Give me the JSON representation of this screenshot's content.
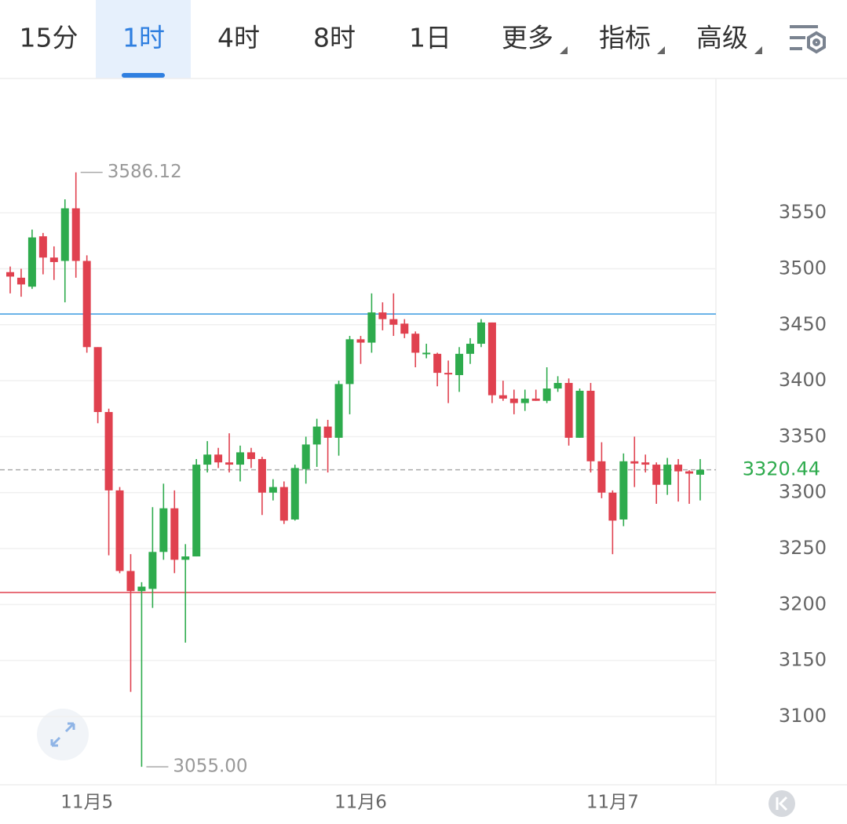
{
  "tabs": {
    "items": [
      "15分",
      "1时",
      "4时",
      "8时",
      "1日",
      "更多",
      "指标",
      "高级"
    ],
    "active": 1
  },
  "chart_data": {
    "type": "candlestick",
    "x": [
      null,
      null,
      null,
      null,
      null,
      null,
      null,
      "11月5",
      null,
      null,
      null,
      null,
      null,
      null,
      null,
      null,
      null,
      null,
      null,
      null,
      null,
      null,
      null,
      null,
      null,
      null,
      null,
      null,
      null,
      null,
      null,
      null,
      "11月6",
      null,
      null,
      null,
      null,
      null,
      null,
      null,
      null,
      null,
      null,
      null,
      null,
      null,
      null,
      null,
      null,
      null,
      null,
      null,
      null,
      null,
      null,
      "11月7",
      null,
      null,
      null,
      null,
      null,
      null,
      null,
      null
    ],
    "open": [
      3497,
      3492,
      3484,
      3529,
      3510,
      3507,
      3554,
      3507,
      3430,
      3372,
      3302,
      3230,
      3212,
      3214,
      3247,
      3286,
      3240,
      3243,
      3325,
      3334,
      3327,
      3325,
      3336,
      3330,
      3300,
      3305,
      3276,
      3321,
      3343,
      3359,
      3349,
      3397,
      3437,
      3434,
      3461,
      3455,
      3451,
      3442,
      3424,
      3424,
      3407,
      3405,
      3424,
      3433,
      3452,
      3387,
      3384,
      3380,
      3384,
      3382,
      3393,
      3398,
      3349,
      3391,
      3328,
      3300,
      3276,
      3328,
      3327,
      3325,
      3307,
      3325,
      3319,
      3316
    ],
    "high": [
      3502,
      3500,
      3535,
      3532,
      3520,
      3562,
      3586.12,
      3512,
      3430,
      3375,
      3305,
      3245,
      3220,
      3287,
      3308,
      3302,
      3254,
      3330,
      3346,
      3340,
      3353,
      3342,
      3340,
      3332,
      3312,
      3310,
      3325,
      3350,
      3366,
      3365,
      3400,
      3440,
      3440,
      3478,
      3470,
      3478,
      3455,
      3444,
      3433,
      3425,
      3418,
      3430,
      3438,
      3455,
      3452,
      3400,
      3392,
      3392,
      3392,
      3412,
      3404,
      3402,
      3393,
      3398,
      3345,
      3302,
      3335,
      3350,
      3334,
      3327,
      3331,
      3330,
      3320,
      3330
    ],
    "low": [
      3478,
      3475,
      3482,
      3495,
      3490,
      3470,
      3492,
      3425,
      3362,
      3244,
      3228,
      3122,
      3055,
      3197,
      3240,
      3228,
      3166,
      3243,
      3318,
      3322,
      3318,
      3310,
      3322,
      3280,
      3293,
      3272,
      3275,
      3308,
      3323,
      3318,
      3333,
      3370,
      3415,
      3425,
      3445,
      3440,
      3438,
      3412,
      3420,
      3395,
      3380,
      3390,
      3415,
      3430,
      3380,
      3382,
      3370,
      3373,
      3382,
      3380,
      3390,
      3342,
      3349,
      3318,
      3295,
      3245,
      3270,
      3305,
      3318,
      3290,
      3298,
      3292,
      3290,
      3293
    ],
    "close": [
      3493,
      3486,
      3528,
      3510,
      3506,
      3554,
      3507,
      3430,
      3372,
      3302,
      3230,
      3212,
      3216,
      3247,
      3286,
      3240,
      3243,
      3325,
      3334,
      3327,
      3325,
      3336,
      3330,
      3300,
      3305,
      3275,
      3322,
      3343,
      3359,
      3349,
      3397,
      3437,
      3434,
      3461,
      3455,
      3450,
      3442,
      3425,
      3425,
      3407,
      3406,
      3424,
      3433,
      3452,
      3387,
      3384,
      3380,
      3384,
      3382,
      3393,
      3398,
      3349,
      3391,
      3328,
      3300,
      3275,
      3328,
      3326,
      3325,
      3307,
      3325,
      3319,
      3317,
      3320.44
    ],
    "up_color": "#2eab4d",
    "down_color": "#e0414f",
    "ylim": [
      3039,
      3670
    ],
    "yticks": [
      3100,
      3150,
      3200,
      3250,
      3300,
      3350,
      3400,
      3450,
      3500,
      3550
    ],
    "grid": true,
    "annotations": [
      {
        "value": 3586.12,
        "label": "3586.12"
      },
      {
        "value": 3055,
        "label": "3055.00"
      }
    ],
    "hlines": [
      {
        "value": 3459.6,
        "color": "#3a9ae0"
      },
      {
        "value": 3210.8,
        "color": "#e0414f"
      }
    ],
    "last_price": {
      "value": 3320.44,
      "label": "3320.44",
      "color": "#2eab4d"
    }
  }
}
